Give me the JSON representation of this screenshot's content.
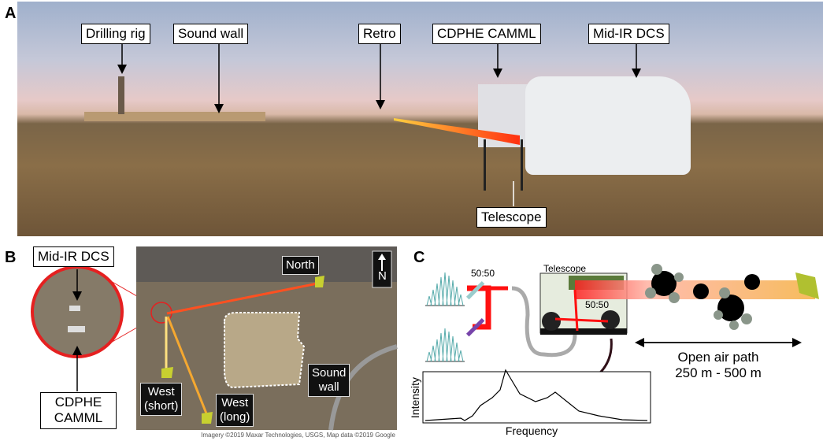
{
  "panel_a": {
    "letter": "A",
    "labels": {
      "drilling_rig": "Drilling rig",
      "sound_wall": "Sound wall",
      "retro": "Retro",
      "cdphe_camml": "CDPHE CAMML",
      "mid_ir_dcs": "Mid-IR DCS",
      "telescope": "Telescope"
    }
  },
  "panel_b": {
    "letter": "B",
    "inset_top": "Mid-IR DCS",
    "inset_bottom_1": "CDPHE",
    "inset_bottom_2": "CAMML",
    "north_arrow": "N",
    "map_labels": {
      "north": "North",
      "west_short_1": "West",
      "west_short_2": "(short)",
      "west_long_1": "West",
      "west_long_2": "(long)",
      "sound_wall_1": "Sound",
      "sound_wall_2": "wall"
    },
    "credits": "Imagery ©2019 Maxar Technologies, USGS, Map data ©2019 Google"
  },
  "panel_c": {
    "letter": "C",
    "splitter_1": "50:50",
    "splitter_2": "50:50",
    "telescope": "Telescope",
    "path_1": "Open air path",
    "path_2": "250 m - 500 m",
    "ylabel": "Intensity",
    "xlabel": "Frequency"
  },
  "colors": {
    "beam": "#ff2020",
    "beam_far": "#f5b040",
    "inset_ring": "#e52020"
  }
}
